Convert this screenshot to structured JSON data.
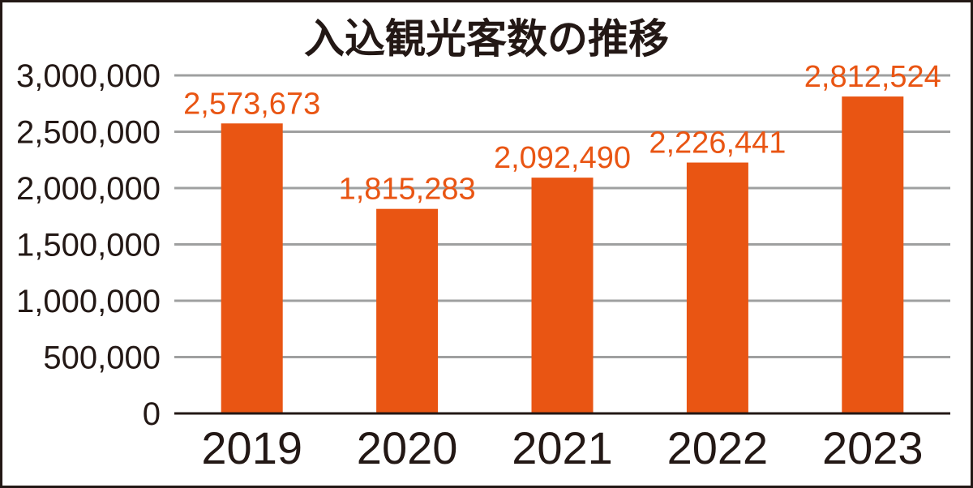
{
  "chart_data": {
    "type": "bar",
    "title": "入込観光客数の推移",
    "categories": [
      "2019",
      "2020",
      "2021",
      "2022",
      "2023"
    ],
    "values": [
      2573673,
      1815283,
      2092490,
      2226441,
      2812524
    ],
    "value_labels": [
      "2,573,673",
      "1,815,283",
      "2,092,490",
      "2,226,441",
      "2,812,524"
    ],
    "y_ticks": [
      0,
      500000,
      1000000,
      1500000,
      2000000,
      2500000,
      3000000
    ],
    "y_tick_labels": [
      "0",
      "500,000",
      "1,000,000",
      "1,500,000",
      "2,000,000",
      "2,500,000",
      "3,000,000"
    ],
    "ylim": [
      0,
      3000000
    ],
    "xlabel": "",
    "ylabel": "",
    "grid": true,
    "legend": "none",
    "bar_color": "#e95513",
    "label_color": "#e95513",
    "text_color": "#231815",
    "grid_color": "#9fa0a0"
  }
}
